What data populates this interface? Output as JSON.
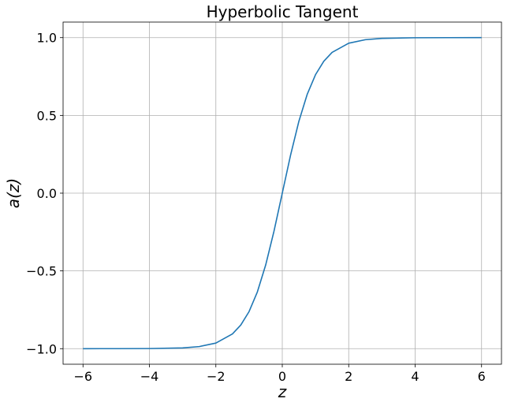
{
  "chart_data": {
    "type": "line",
    "title": "Hyperbolic Tangent",
    "xlabel": "z",
    "ylabel": "a(z)",
    "xlim": [
      -6.6,
      6.6
    ],
    "ylim": [
      -1.1,
      1.1
    ],
    "x_ticks": [
      -6,
      -4,
      -2,
      0,
      2,
      4,
      6
    ],
    "x_tick_labels": [
      "−6",
      "−4",
      "−2",
      "0",
      "2",
      "4",
      "6"
    ],
    "y_ticks": [
      -1.0,
      -0.5,
      0.0,
      0.5,
      1.0
    ],
    "y_tick_labels": [
      "−1.0",
      "−0.5",
      "0.0",
      "0.5",
      "1.0"
    ],
    "grid": true,
    "series": [
      {
        "color": "#1f77b4",
        "x": [
          -6,
          -5,
          -4,
          -3,
          -2.5,
          -2,
          -1.5,
          -1.25,
          -1,
          -0.75,
          -0.5,
          -0.25,
          0,
          0.25,
          0.5,
          0.75,
          1,
          1.25,
          1.5,
          2,
          2.5,
          3,
          4,
          5,
          6
        ],
        "y": [
          -1.0,
          -0.9999,
          -0.9993,
          -0.9951,
          -0.9866,
          -0.964,
          -0.9051,
          -0.8483,
          -0.7616,
          -0.6351,
          -0.4621,
          -0.2449,
          0.0,
          0.2449,
          0.4621,
          0.6351,
          0.7616,
          0.8483,
          0.9051,
          0.964,
          0.9866,
          0.9951,
          0.9993,
          0.9999,
          1.0
        ]
      }
    ]
  }
}
